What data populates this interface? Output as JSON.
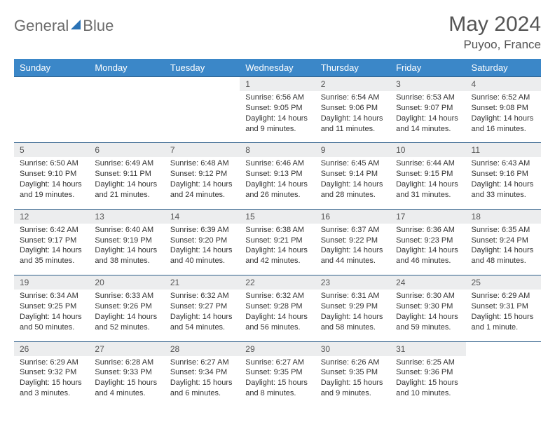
{
  "logo": {
    "word1": "General",
    "word2": "Blue"
  },
  "header": {
    "title": "May 2024",
    "location": "Puyoo, France"
  },
  "styles": {
    "header_bg": "#3b87c8",
    "header_text": "#ffffff",
    "numrow_bg": "#ecedee",
    "rule_color": "#2f5f8a",
    "title_color": "#555555",
    "body_text": "#333333",
    "title_fontsize": 30,
    "location_fontsize": 17,
    "dayhdr_fontsize": 13,
    "cell_fontsize": 11
  },
  "days": [
    "Sunday",
    "Monday",
    "Tuesday",
    "Wednesday",
    "Thursday",
    "Friday",
    "Saturday"
  ],
  "weeks": [
    {
      "nums": [
        "",
        "",
        "",
        "1",
        "2",
        "3",
        "4"
      ],
      "cells": [
        null,
        null,
        null,
        {
          "sunrise": "Sunrise: 6:56 AM",
          "sunset": "Sunset: 9:05 PM",
          "day1": "Daylight: 14 hours",
          "day2": "and 9 minutes."
        },
        {
          "sunrise": "Sunrise: 6:54 AM",
          "sunset": "Sunset: 9:06 PM",
          "day1": "Daylight: 14 hours",
          "day2": "and 11 minutes."
        },
        {
          "sunrise": "Sunrise: 6:53 AM",
          "sunset": "Sunset: 9:07 PM",
          "day1": "Daylight: 14 hours",
          "day2": "and 14 minutes."
        },
        {
          "sunrise": "Sunrise: 6:52 AM",
          "sunset": "Sunset: 9:08 PM",
          "day1": "Daylight: 14 hours",
          "day2": "and 16 minutes."
        }
      ]
    },
    {
      "nums": [
        "5",
        "6",
        "7",
        "8",
        "9",
        "10",
        "11"
      ],
      "cells": [
        {
          "sunrise": "Sunrise: 6:50 AM",
          "sunset": "Sunset: 9:10 PM",
          "day1": "Daylight: 14 hours",
          "day2": "and 19 minutes."
        },
        {
          "sunrise": "Sunrise: 6:49 AM",
          "sunset": "Sunset: 9:11 PM",
          "day1": "Daylight: 14 hours",
          "day2": "and 21 minutes."
        },
        {
          "sunrise": "Sunrise: 6:48 AM",
          "sunset": "Sunset: 9:12 PM",
          "day1": "Daylight: 14 hours",
          "day2": "and 24 minutes."
        },
        {
          "sunrise": "Sunrise: 6:46 AM",
          "sunset": "Sunset: 9:13 PM",
          "day1": "Daylight: 14 hours",
          "day2": "and 26 minutes."
        },
        {
          "sunrise": "Sunrise: 6:45 AM",
          "sunset": "Sunset: 9:14 PM",
          "day1": "Daylight: 14 hours",
          "day2": "and 28 minutes."
        },
        {
          "sunrise": "Sunrise: 6:44 AM",
          "sunset": "Sunset: 9:15 PM",
          "day1": "Daylight: 14 hours",
          "day2": "and 31 minutes."
        },
        {
          "sunrise": "Sunrise: 6:43 AM",
          "sunset": "Sunset: 9:16 PM",
          "day1": "Daylight: 14 hours",
          "day2": "and 33 minutes."
        }
      ]
    },
    {
      "nums": [
        "12",
        "13",
        "14",
        "15",
        "16",
        "17",
        "18"
      ],
      "cells": [
        {
          "sunrise": "Sunrise: 6:42 AM",
          "sunset": "Sunset: 9:17 PM",
          "day1": "Daylight: 14 hours",
          "day2": "and 35 minutes."
        },
        {
          "sunrise": "Sunrise: 6:40 AM",
          "sunset": "Sunset: 9:19 PM",
          "day1": "Daylight: 14 hours",
          "day2": "and 38 minutes."
        },
        {
          "sunrise": "Sunrise: 6:39 AM",
          "sunset": "Sunset: 9:20 PM",
          "day1": "Daylight: 14 hours",
          "day2": "and 40 minutes."
        },
        {
          "sunrise": "Sunrise: 6:38 AM",
          "sunset": "Sunset: 9:21 PM",
          "day1": "Daylight: 14 hours",
          "day2": "and 42 minutes."
        },
        {
          "sunrise": "Sunrise: 6:37 AM",
          "sunset": "Sunset: 9:22 PM",
          "day1": "Daylight: 14 hours",
          "day2": "and 44 minutes."
        },
        {
          "sunrise": "Sunrise: 6:36 AM",
          "sunset": "Sunset: 9:23 PM",
          "day1": "Daylight: 14 hours",
          "day2": "and 46 minutes."
        },
        {
          "sunrise": "Sunrise: 6:35 AM",
          "sunset": "Sunset: 9:24 PM",
          "day1": "Daylight: 14 hours",
          "day2": "and 48 minutes."
        }
      ]
    },
    {
      "nums": [
        "19",
        "20",
        "21",
        "22",
        "23",
        "24",
        "25"
      ],
      "cells": [
        {
          "sunrise": "Sunrise: 6:34 AM",
          "sunset": "Sunset: 9:25 PM",
          "day1": "Daylight: 14 hours",
          "day2": "and 50 minutes."
        },
        {
          "sunrise": "Sunrise: 6:33 AM",
          "sunset": "Sunset: 9:26 PM",
          "day1": "Daylight: 14 hours",
          "day2": "and 52 minutes."
        },
        {
          "sunrise": "Sunrise: 6:32 AM",
          "sunset": "Sunset: 9:27 PM",
          "day1": "Daylight: 14 hours",
          "day2": "and 54 minutes."
        },
        {
          "sunrise": "Sunrise: 6:32 AM",
          "sunset": "Sunset: 9:28 PM",
          "day1": "Daylight: 14 hours",
          "day2": "and 56 minutes."
        },
        {
          "sunrise": "Sunrise: 6:31 AM",
          "sunset": "Sunset: 9:29 PM",
          "day1": "Daylight: 14 hours",
          "day2": "and 58 minutes."
        },
        {
          "sunrise": "Sunrise: 6:30 AM",
          "sunset": "Sunset: 9:30 PM",
          "day1": "Daylight: 14 hours",
          "day2": "and 59 minutes."
        },
        {
          "sunrise": "Sunrise: 6:29 AM",
          "sunset": "Sunset: 9:31 PM",
          "day1": "Daylight: 15 hours",
          "day2": "and 1 minute."
        }
      ]
    },
    {
      "nums": [
        "26",
        "27",
        "28",
        "29",
        "30",
        "31",
        ""
      ],
      "cells": [
        {
          "sunrise": "Sunrise: 6:29 AM",
          "sunset": "Sunset: 9:32 PM",
          "day1": "Daylight: 15 hours",
          "day2": "and 3 minutes."
        },
        {
          "sunrise": "Sunrise: 6:28 AM",
          "sunset": "Sunset: 9:33 PM",
          "day1": "Daylight: 15 hours",
          "day2": "and 4 minutes."
        },
        {
          "sunrise": "Sunrise: 6:27 AM",
          "sunset": "Sunset: 9:34 PM",
          "day1": "Daylight: 15 hours",
          "day2": "and 6 minutes."
        },
        {
          "sunrise": "Sunrise: 6:27 AM",
          "sunset": "Sunset: 9:35 PM",
          "day1": "Daylight: 15 hours",
          "day2": "and 8 minutes."
        },
        {
          "sunrise": "Sunrise: 6:26 AM",
          "sunset": "Sunset: 9:35 PM",
          "day1": "Daylight: 15 hours",
          "day2": "and 9 minutes."
        },
        {
          "sunrise": "Sunrise: 6:25 AM",
          "sunset": "Sunset: 9:36 PM",
          "day1": "Daylight: 15 hours",
          "day2": "and 10 minutes."
        },
        null
      ]
    }
  ]
}
